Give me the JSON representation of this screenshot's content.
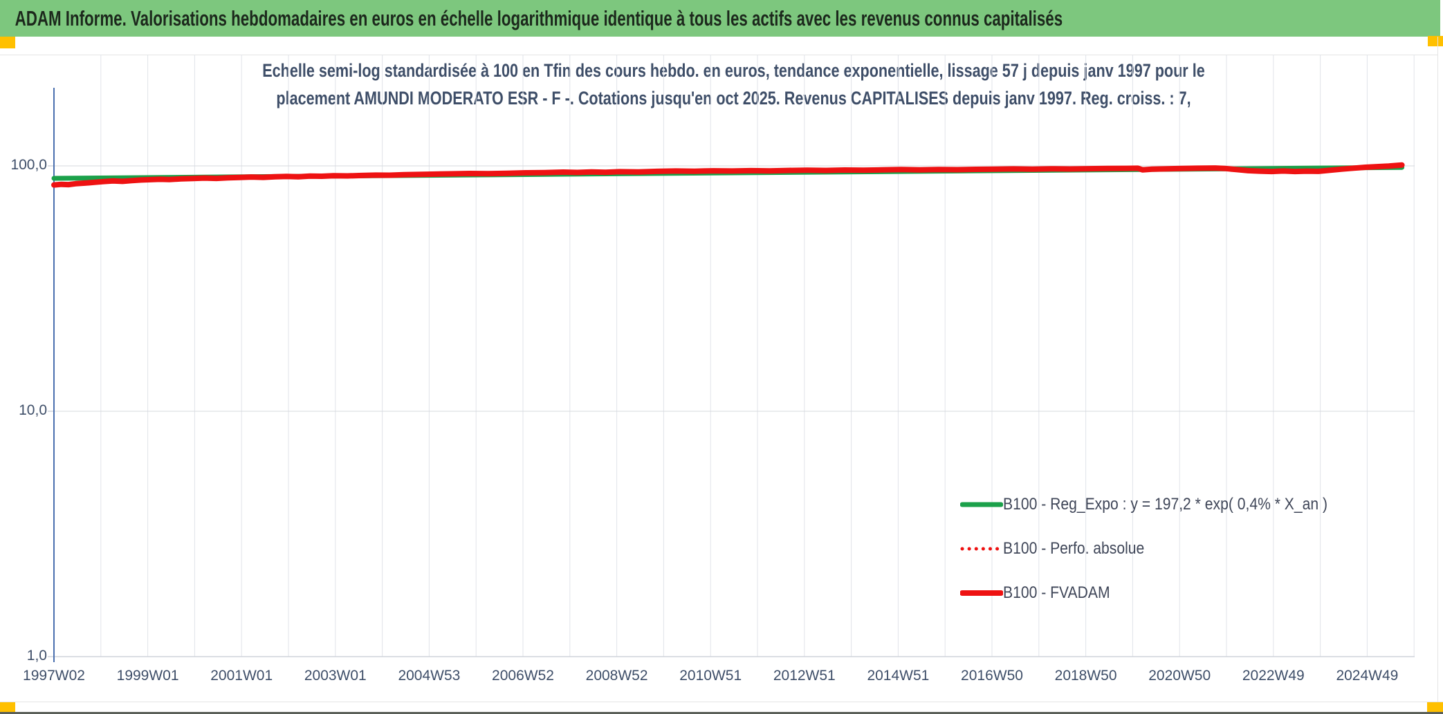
{
  "header": {
    "title": "ADAM Informe. Valorisations hebdomadaires en euros en échelle logarithmique identique à tous les actifs avec les revenus connus capitalisés"
  },
  "chart": {
    "title_line1": "Echelle semi-log standardisée à 100 en Tfin des cours hebdo. en euros, tendance exponentielle, lissage 57 j depuis janv 1997 pour le",
    "title_line2": "placement AMUNDI MODERATO ESR - F -. Cotations jusqu'en oct 2025. Revenus CAPITALISES depuis janv 1997. Reg. croiss. : 7,"
  },
  "chart_data": {
    "type": "line",
    "title": "Echelle semi-log standardisée à 100 en Tfin des cours hebdo. en euros, tendance exponentielle, lissage 57 j depuis janv 1997 pour le placement AMUNDI MODERATO ESR - F -. Cotations jusqu'en oct 2025. Revenus CAPITALISES depuis janv 1997. Reg. croiss. : 7,",
    "x_axis": {
      "unit": "year_decimal",
      "tick_labels": [
        "1997W02",
        "1999W01",
        "2001W01",
        "2003W01",
        "2004W53",
        "2006W52",
        "2008W52",
        "2010W51",
        "2012W51",
        "2014W51",
        "2016W50",
        "2018W50",
        "2020W50",
        "2022W49",
        "2024W49"
      ],
      "tick_interval_years": 2,
      "gridline_interval_years": 1,
      "range_years": [
        1997.04,
        2025.9
      ]
    },
    "y_axis": {
      "scale": "log",
      "ylim": [
        1,
        300
      ],
      "ticks": [
        {
          "label": "100,0",
          "value": 100
        },
        {
          "label": "10,0",
          "value": 10
        },
        {
          "label": "1,0",
          "value": 1
        }
      ],
      "grid": true
    },
    "legend_position": "inside-bottom-right",
    "series": [
      {
        "name": "B100 - Reg_Expo : y = 197,2 * exp( 0,4% *  X_an )",
        "color": "#1ba14a",
        "style": "solid",
        "width": 7,
        "points": [
          [
            1997.04,
            89.0
          ],
          [
            2025.78,
            98.6
          ]
        ]
      },
      {
        "name": "B100 - Perfo. absolue",
        "color": "#ee1212",
        "style": "dotted",
        "width": 5,
        "same_points_as": "B100 - FVADAM"
      },
      {
        "name": "B100 - FVADAM",
        "color": "#ee1212",
        "style": "solid",
        "width": 8,
        "points": [
          [
            1997.04,
            83.6
          ],
          [
            1997.2,
            84.1
          ],
          [
            1997.35,
            83.9
          ],
          [
            1997.5,
            84.6
          ],
          [
            1997.7,
            85.1
          ],
          [
            1997.9,
            85.7
          ],
          [
            1998.1,
            86.3
          ],
          [
            1998.3,
            86.8
          ],
          [
            1998.5,
            86.5
          ],
          [
            1998.7,
            87.1
          ],
          [
            1998.9,
            87.6
          ],
          [
            1999.1,
            87.9
          ],
          [
            1999.3,
            88.2
          ],
          [
            1999.5,
            88.0
          ],
          [
            1999.75,
            88.5
          ],
          [
            2000.0,
            88.8
          ],
          [
            2000.25,
            89.2
          ],
          [
            2000.5,
            88.9
          ],
          [
            2000.75,
            89.4
          ],
          [
            2001.0,
            89.7
          ],
          [
            2001.25,
            90.1
          ],
          [
            2001.5,
            89.8
          ],
          [
            2001.75,
            90.3
          ],
          [
            2002.0,
            90.6
          ],
          [
            2002.25,
            90.3
          ],
          [
            2002.5,
            90.9
          ],
          [
            2002.75,
            90.7
          ],
          [
            2003.0,
            91.2
          ],
          [
            2003.3,
            91.0
          ],
          [
            2003.6,
            91.4
          ],
          [
            2003.9,
            91.7
          ],
          [
            2004.2,
            91.6
          ],
          [
            2004.5,
            92.1
          ],
          [
            2004.8,
            92.3
          ],
          [
            2005.1,
            92.5
          ],
          [
            2005.5,
            92.8
          ],
          [
            2005.9,
            93.1
          ],
          [
            2006.3,
            93.0
          ],
          [
            2006.7,
            93.3
          ],
          [
            2007.1,
            93.7
          ],
          [
            2007.5,
            93.9
          ],
          [
            2007.9,
            94.3
          ],
          [
            2008.2,
            94.0
          ],
          [
            2008.5,
            94.5
          ],
          [
            2008.8,
            94.2
          ],
          [
            2009.1,
            94.7
          ],
          [
            2009.5,
            94.5
          ],
          [
            2009.9,
            95.0
          ],
          [
            2010.3,
            95.3
          ],
          [
            2010.7,
            95.1
          ],
          [
            2011.1,
            95.5
          ],
          [
            2011.5,
            95.3
          ],
          [
            2011.9,
            95.6
          ],
          [
            2012.3,
            95.4
          ],
          [
            2012.7,
            95.8
          ],
          [
            2013.1,
            96.0
          ],
          [
            2013.5,
            95.8
          ],
          [
            2013.9,
            96.2
          ],
          [
            2014.3,
            96.0
          ],
          [
            2014.7,
            96.3
          ],
          [
            2015.1,
            96.6
          ],
          [
            2015.5,
            96.3
          ],
          [
            2015.9,
            96.6
          ],
          [
            2016.3,
            96.5
          ],
          [
            2016.7,
            96.8
          ],
          [
            2017.1,
            97.0
          ],
          [
            2017.5,
            97.2
          ],
          [
            2017.9,
            97.0
          ],
          [
            2018.3,
            97.3
          ],
          [
            2018.7,
            97.1
          ],
          [
            2019.1,
            97.4
          ],
          [
            2019.5,
            97.6
          ],
          [
            2019.9,
            97.7
          ],
          [
            2020.15,
            97.8
          ],
          [
            2020.25,
            96.4
          ],
          [
            2020.45,
            97.0
          ],
          [
            2020.7,
            97.2
          ],
          [
            2021.0,
            97.5
          ],
          [
            2021.4,
            97.8
          ],
          [
            2021.8,
            98.0
          ],
          [
            2022.0,
            97.6
          ],
          [
            2022.25,
            96.6
          ],
          [
            2022.5,
            95.6
          ],
          [
            2022.75,
            95.2
          ],
          [
            2023.0,
            94.9
          ],
          [
            2023.25,
            95.3
          ],
          [
            2023.5,
            94.9
          ],
          [
            2023.75,
            95.2
          ],
          [
            2024.0,
            95.0
          ],
          [
            2024.25,
            96.0
          ],
          [
            2024.5,
            97.0
          ],
          [
            2024.75,
            97.9
          ],
          [
            2025.0,
            98.7
          ],
          [
            2025.25,
            99.3
          ],
          [
            2025.5,
            99.8
          ],
          [
            2025.78,
            100.8
          ]
        ]
      }
    ]
  },
  "colors": {
    "banner_bg": "#7dc77e",
    "banner_text": "#1c281c",
    "accent_square": "#ffc000",
    "chart_text": "#3e4e68",
    "legend_text": "#3f4658",
    "grid_vertical": "#e0e3e9",
    "grid_horizontal": "#d6d9de",
    "axis_line": "#4a6fae",
    "bottom_axis": "#cfd3da"
  }
}
